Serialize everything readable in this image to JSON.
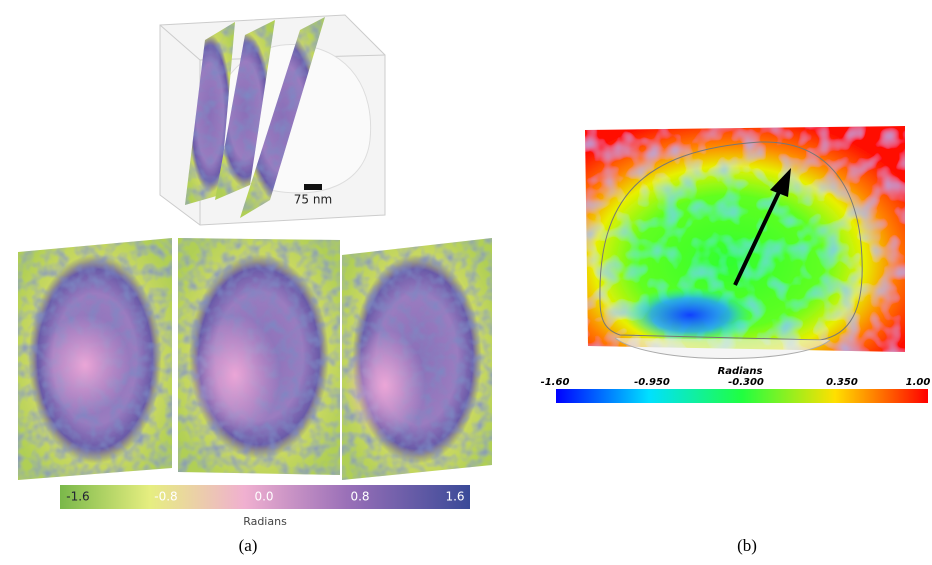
{
  "panel_a": {
    "scale_bar": "75 nm",
    "colorbar": {
      "ticks": [
        "-1.6",
        "-0.8",
        "0.0",
        "0.8",
        "1.6"
      ],
      "label": "Radians"
    },
    "caption": "(a)"
  },
  "panel_b": {
    "colorbar": {
      "ticks": [
        "-1.60",
        "-0.950",
        "-0.300",
        "0.350",
        "1.00"
      ],
      "label": "Radians"
    },
    "caption": "(b)"
  }
}
